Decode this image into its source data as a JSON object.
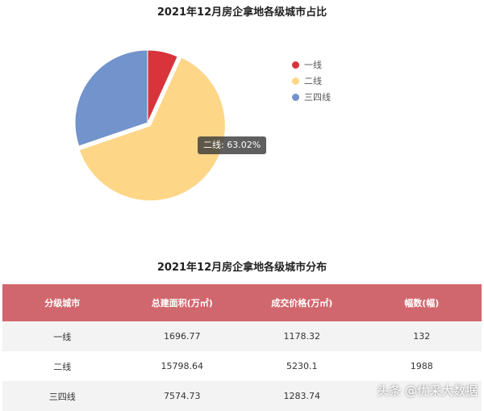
{
  "chart_data": {
    "type": "pie",
    "title": "2021年12月房企拿地各级城市占比",
    "categories": [
      "一线",
      "二线",
      "三四线"
    ],
    "values": [
      6.77,
      63.02,
      30.21
    ],
    "colors": [
      "#d9333b",
      "#fed688",
      "#7293cb"
    ],
    "legend": "right",
    "tooltip": {
      "category": "二线",
      "value": 63.02,
      "text": "二线: 63.02%"
    }
  },
  "table": {
    "title": "2021年12月房企拿地各级城市分布",
    "header_color": "#d1676e",
    "columns": [
      "分级城市",
      "总建面积(万㎡)",
      "成交价格(万㎡)",
      "幅数(幅)"
    ],
    "rows": [
      [
        "一线",
        "1696.77",
        "1178.32",
        "132"
      ],
      [
        "二线",
        "15798.64",
        "5230.1",
        "1988"
      ],
      [
        "三四线",
        "7574.73",
        "1283.74",
        ""
      ]
    ]
  },
  "watermark": {
    "text": "头条 @优采大数据"
  }
}
